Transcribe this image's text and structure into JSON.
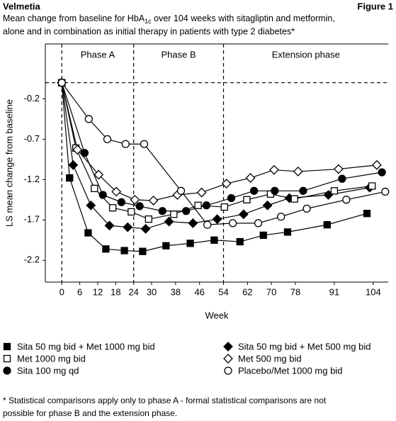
{
  "chart_data": {
    "type": "line",
    "brand": "Velmetia",
    "figure_label": "Figure 1",
    "title": {
      "text": "Mean change from baseline for HbA",
      "subscript": "1c",
      "text_after": " over 104 weeks with sitagliptin and metformin,",
      "line2": "alone and in combination as initial therapy in patients with type 2 diabetes*"
    },
    "x_label": "Week",
    "y_label": "LS mean change from baseline",
    "phases": [
      {
        "label": "Phase A",
        "start": 0
      },
      {
        "label": "Phase B",
        "start": 24
      },
      {
        "label": "Extension phase",
        "start": 54
      }
    ],
    "baseline": 0,
    "xlim": [
      -5.5,
      109
    ],
    "xticks": [
      0,
      6,
      12,
      18,
      24,
      30,
      38,
      46,
      54,
      62,
      70,
      78,
      91,
      104
    ],
    "ylim": [
      -2.47,
      0.48
    ],
    "yticks": [
      -0.2,
      -0.7,
      -1.2,
      -1.7,
      -2.2
    ],
    "series": [
      {
        "name": "Sita 50 mg bid + Met 1000 mg bid",
        "color": "#000000",
        "marker": "square",
        "filled": true,
        "x": [
          0,
          2.6,
          8.8,
          14.7,
          20.9,
          27,
          34.8,
          42.9,
          50.9,
          59.5,
          67.3,
          75.4,
          88.6,
          101.9
        ],
        "values": [
          0,
          -1.18,
          -1.86,
          -2.06,
          -2.08,
          -2.09,
          -2.02,
          -1.99,
          -1.95,
          -1.97,
          -1.89,
          -1.85,
          -1.76,
          -1.62
        ]
      },
      {
        "name": "Sita 50 mg bid + Met 500 mg bid",
        "color": "#000000",
        "marker": "diamond",
        "filled": true,
        "x": [
          0,
          3.8,
          9.7,
          15.9,
          22,
          28,
          35.8,
          43.8,
          51.9,
          60.7,
          68.7,
          76,
          89,
          102.8
        ],
        "values": [
          0,
          -1.02,
          -1.52,
          -1.77,
          -1.79,
          -1.81,
          -1.72,
          -1.74,
          -1.69,
          -1.63,
          -1.52,
          -1.43,
          -1.39,
          -1.3
        ]
      },
      {
        "name": "Met 1000 mg bid",
        "color": "#000000",
        "marker": "square",
        "filled": false,
        "x": [
          0,
          4.7,
          10.9,
          17,
          23.2,
          29,
          37.4,
          45.5,
          54.3,
          61.8,
          69.7,
          77.7,
          91,
          103.6
        ],
        "values": [
          0,
          -0.81,
          -1.31,
          -1.55,
          -1.6,
          -1.69,
          -1.63,
          -1.52,
          -1.54,
          -1.45,
          -1.38,
          -1.44,
          -1.34,
          -1.28
        ]
      },
      {
        "name": "Met 500 mg bid",
        "color": "#000000",
        "marker": "diamond",
        "filled": false,
        "x": [
          0,
          5.2,
          12.3,
          18.2,
          24.4,
          30.6,
          38.6,
          46.7,
          55,
          63,
          70.9,
          78.9,
          92.4,
          105.2
        ],
        "values": [
          0,
          -0.83,
          -1.14,
          -1.35,
          -1.45,
          -1.46,
          -1.39,
          -1.36,
          -1.25,
          -1.18,
          -1.08,
          -1.1,
          -1.07,
          -1.02
        ]
      },
      {
        "name": "Sita 100 mg qd",
        "color": "#000000",
        "marker": "circle",
        "filled": true,
        "x": [
          0,
          7.6,
          13.7,
          19.9,
          26,
          33.6,
          41.5,
          48.3,
          56.6,
          64.2,
          71.1,
          80.6,
          93.6,
          106.9
        ],
        "values": [
          0,
          -0.87,
          -1.39,
          -1.48,
          -1.53,
          -1.59,
          -1.59,
          -1.52,
          -1.43,
          -1.34,
          -1.34,
          -1.34,
          -1.19,
          -1.11
        ]
      },
      {
        "name": "Placebo/Met 1000 mg bid",
        "color": "#000000",
        "marker": "circle",
        "filled": false,
        "x": [
          0,
          9,
          15.2,
          21.3,
          27.5,
          39.8,
          48.6,
          57.1,
          65.6,
          73.2,
          81.8,
          95,
          108
        ],
        "values": [
          0,
          -0.45,
          -0.7,
          -0.76,
          -0.76,
          -1.34,
          -1.76,
          -1.74,
          -1.74,
          -1.66,
          -1.56,
          -1.45,
          -1.35
        ]
      }
    ],
    "footnote": [
      "* Statistical comparisons apply only to phase A - formal statistical comparisons are not",
      "possible for phase B and the extension phase."
    ]
  }
}
